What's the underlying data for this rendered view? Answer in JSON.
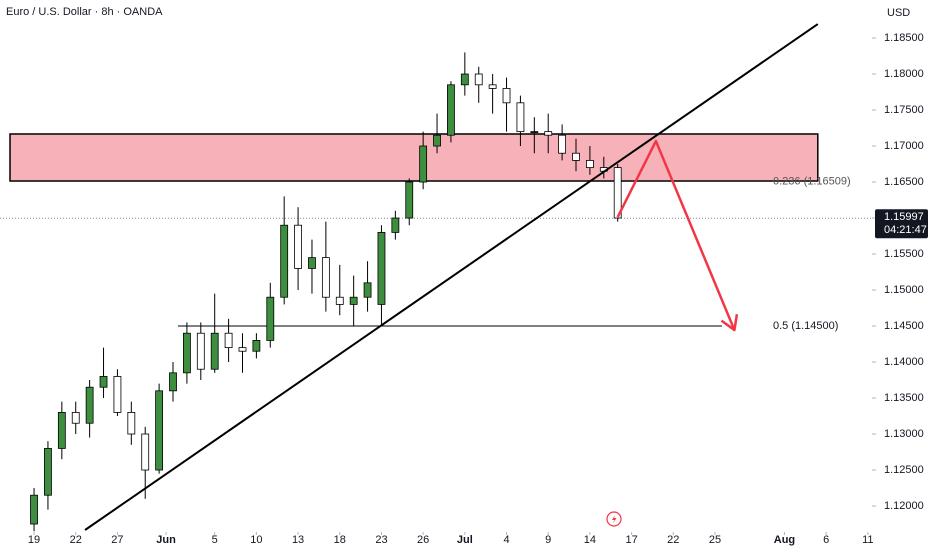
{
  "chart_data": {
    "type": "candlestick",
    "title": "Euro / U.S. Dollar · 8h · OANDA",
    "currency": "USD",
    "up_color": "#3d8f3f",
    "down_color": "#ffffff",
    "x": [
      0,
      1,
      2,
      3,
      4,
      5,
      6,
      7,
      8,
      9,
      10,
      11,
      12,
      13,
      14,
      15,
      16,
      17,
      18,
      19,
      20,
      21,
      22,
      23,
      24,
      25,
      26,
      27,
      28,
      29,
      30,
      31,
      32,
      33,
      34,
      35,
      36,
      37,
      38,
      39,
      40,
      41,
      42
    ],
    "open": [
      1.1175,
      1.1215,
      1.128,
      1.133,
      1.1315,
      1.1365,
      1.138,
      1.133,
      1.13,
      1.125,
      1.136,
      1.1385,
      1.144,
      1.139,
      1.144,
      1.142,
      1.1415,
      1.143,
      1.149,
      1.159,
      1.153,
      1.1545,
      1.149,
      1.148,
      1.149,
      1.148,
      1.158,
      1.16,
      1.165,
      1.17,
      1.1715,
      1.1785,
      1.18,
      1.1785,
      1.178,
      1.176,
      1.172,
      1.172,
      1.1715,
      1.169,
      1.168,
      1.167,
      1.167
    ],
    "high": [
      1.1225,
      1.129,
      1.1345,
      1.1345,
      1.1375,
      1.142,
      1.139,
      1.1345,
      1.131,
      1.137,
      1.14,
      1.1455,
      1.1455,
      1.1495,
      1.146,
      1.144,
      1.144,
      1.151,
      1.163,
      1.1615,
      1.157,
      1.1595,
      1.1535,
      1.152,
      1.154,
      1.159,
      1.161,
      1.1655,
      1.172,
      1.1745,
      1.179,
      1.183,
      1.181,
      1.18,
      1.1795,
      1.177,
      1.174,
      1.1745,
      1.173,
      1.171,
      1.17,
      1.1685,
      1.1675
    ],
    "low": [
      1.1165,
      1.1195,
      1.1265,
      1.13,
      1.1295,
      1.135,
      1.1325,
      1.1285,
      1.121,
      1.1245,
      1.1345,
      1.137,
      1.1375,
      1.1385,
      1.14,
      1.1385,
      1.1405,
      1.142,
      1.148,
      1.15,
      1.1495,
      1.147,
      1.1465,
      1.145,
      1.147,
      1.1452,
      1.157,
      1.159,
      1.164,
      1.169,
      1.1705,
      1.177,
      1.176,
      1.1745,
      1.172,
      1.17,
      1.169,
      1.169,
      1.168,
      1.1665,
      1.166,
      1.1655,
      1.1595
    ],
    "close": [
      1.1215,
      1.128,
      1.133,
      1.1315,
      1.1365,
      1.138,
      1.133,
      1.13,
      1.125,
      1.136,
      1.1385,
      1.144,
      1.139,
      1.144,
      1.142,
      1.1415,
      1.143,
      1.149,
      1.159,
      1.153,
      1.1545,
      1.149,
      1.148,
      1.149,
      1.151,
      1.158,
      1.16,
      1.165,
      1.17,
      1.1715,
      1.1785,
      1.18,
      1.1785,
      1.178,
      1.176,
      1.172,
      1.172,
      1.1715,
      1.169,
      1.168,
      1.167,
      1.1665,
      1.16
    ],
    "xlim": [
      -2.45,
      60.3
    ],
    "xticks": [
      {
        "value": 0,
        "label": "19"
      },
      {
        "value": 3,
        "label": "22"
      },
      {
        "value": 6,
        "label": "27"
      },
      {
        "value": 9.5,
        "label": "Jun"
      },
      {
        "value": 13,
        "label": "5"
      },
      {
        "value": 16,
        "label": "10"
      },
      {
        "value": 19,
        "label": "13"
      },
      {
        "value": 22,
        "label": "18"
      },
      {
        "value": 25,
        "label": "23"
      },
      {
        "value": 28,
        "label": "26"
      },
      {
        "value": 31,
        "label": "Jul"
      },
      {
        "value": 34,
        "label": "4"
      },
      {
        "value": 37,
        "label": "9"
      },
      {
        "value": 40,
        "label": "14"
      },
      {
        "value": 43,
        "label": "17"
      },
      {
        "value": 46,
        "label": "22"
      },
      {
        "value": 49,
        "label": "25"
      },
      {
        "value": 54,
        "label": "Aug"
      },
      {
        "value": 57,
        "label": "6"
      },
      {
        "value": 60,
        "label": "11"
      }
    ],
    "ylim": [
      1.11667,
      1.19028
    ],
    "yticks": [
      {
        "value": 1.12,
        "label": "1.12000"
      },
      {
        "value": 1.125,
        "label": "1.12500"
      },
      {
        "value": 1.13,
        "label": "1.13000"
      },
      {
        "value": 1.135,
        "label": "1.13500"
      },
      {
        "value": 1.14,
        "label": "1.14000"
      },
      {
        "value": 1.145,
        "label": "1.14500"
      },
      {
        "value": 1.15,
        "label": "1.15000"
      },
      {
        "value": 1.155,
        "label": "1.15500"
      },
      {
        "value": 1.16,
        "label": "1.16000"
      },
      {
        "value": 1.165,
        "label": "1.16500"
      },
      {
        "value": 1.17,
        "label": "1.17000"
      },
      {
        "value": 1.175,
        "label": "1.17500"
      },
      {
        "value": 1.18,
        "label": "1.18000"
      },
      {
        "value": 1.185,
        "label": "1.18500"
      }
    ],
    "zone": {
      "x": [
        -1.73,
        56.4
      ],
      "y": [
        1.16514,
        1.17167
      ],
      "color": "#f7b1b8"
    },
    "trendline": {
      "x": [
        3.67,
        56.4
      ],
      "y": [
        1.11667,
        1.18694
      ]
    },
    "levels": [
      {
        "value": 1.16509,
        "label": "0.236 (1.16509)"
      },
      {
        "value": 1.145,
        "label": "0.5 (1.14500)",
        "x": [
          10.36,
          49.5
        ]
      }
    ],
    "projection": {
      "x": [
        42,
        44.75,
        50.4
      ],
      "y": [
        1.16014,
        1.17069,
        1.14444
      ],
      "color": "#f23645"
    },
    "last_price": {
      "value": 1.15997,
      "label": "1.15997",
      "countdown": "04:21:47"
    }
  }
}
